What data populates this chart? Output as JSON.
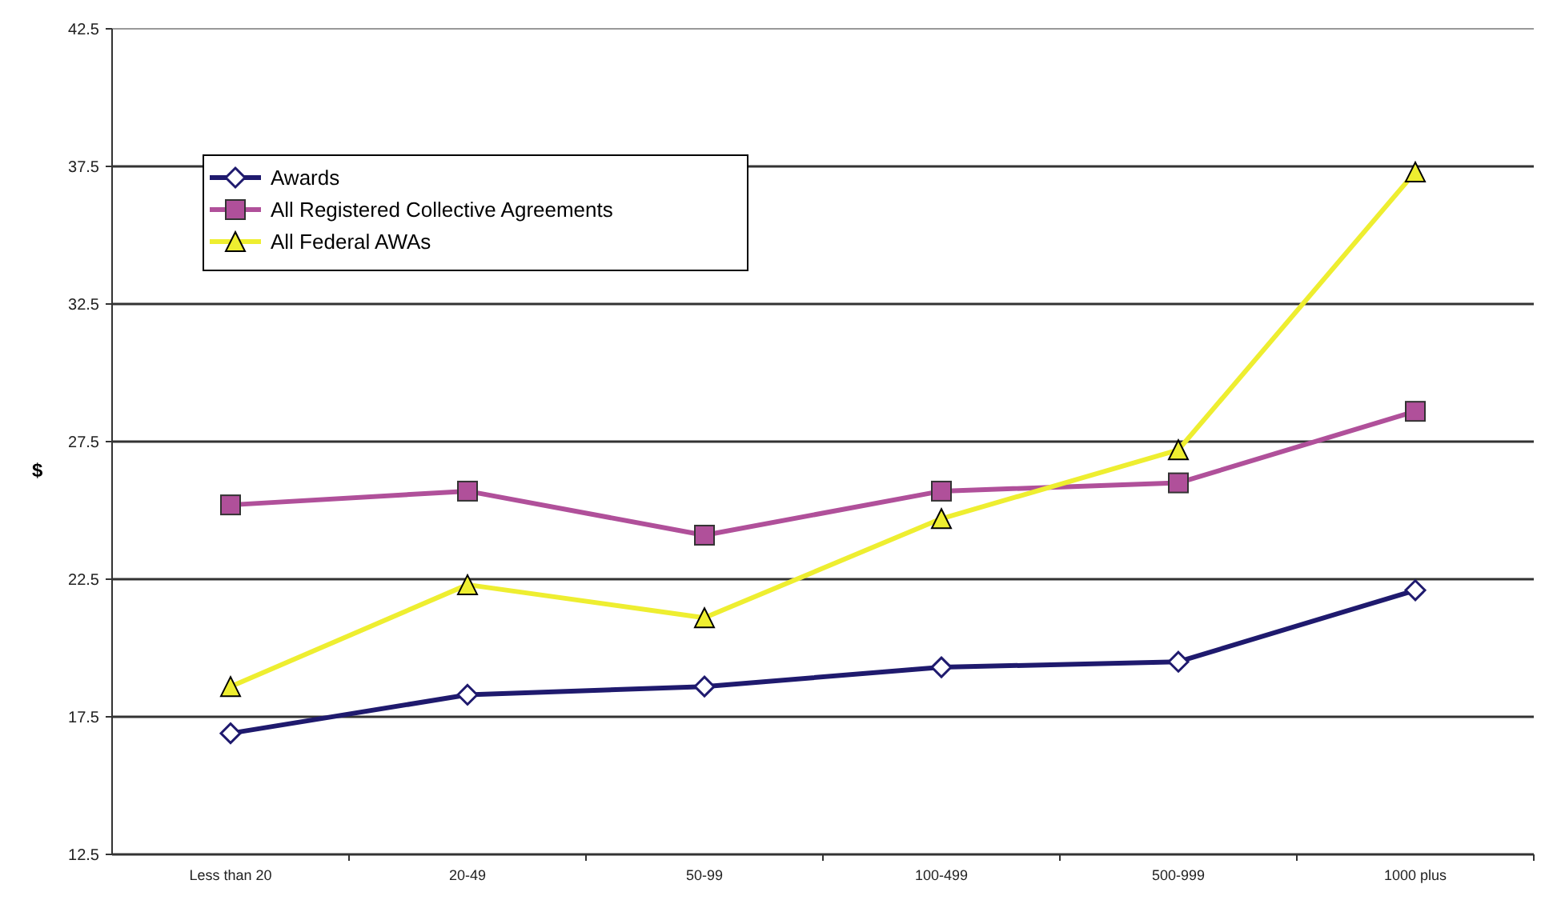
{
  "chart_data": {
    "type": "line",
    "ylabel": "$",
    "categories": [
      "Less than 20",
      "20-49",
      "50-99",
      "100-499",
      "500-999",
      "1000 plus"
    ],
    "series": [
      {
        "name": "Awards",
        "color": "#1f1a6e",
        "marker": "diamond",
        "values": [
          16.9,
          18.3,
          18.6,
          19.3,
          19.5,
          22.1
        ]
      },
      {
        "name": "All Registered Collective Agreements",
        "color": "#b0509a",
        "marker": "square",
        "values": [
          25.2,
          25.7,
          24.1,
          25.7,
          26.0,
          28.6
        ]
      },
      {
        "name": "All Federal AWAs",
        "color": "#eeee30",
        "marker": "triangle",
        "values": [
          18.6,
          22.3,
          21.1,
          24.7,
          27.2,
          37.3
        ]
      }
    ],
    "ylim": [
      12.5,
      42.5
    ],
    "yticks": [
      12.5,
      17.5,
      22.5,
      27.5,
      32.5,
      37.5,
      42.5
    ],
    "grid": "y",
    "legend": "top left",
    "line_style": "solid"
  }
}
